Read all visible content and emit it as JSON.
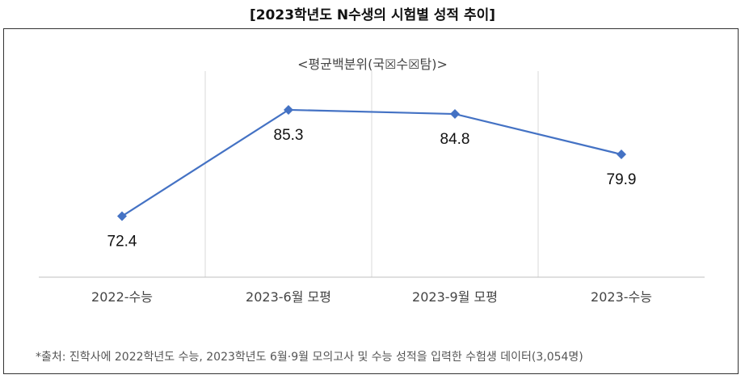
{
  "header": {
    "title": "[2023학년도 N수생의 시험별 성적 추이]"
  },
  "footer": {
    "source": "*출처: 진학사에 2022학년도 수능, 2023학년도 6월·9월 모의고사 및 수능 성적을 입력한 수험생 데이터(3,054명)"
  },
  "chart_data": {
    "type": "line",
    "title": "<평균백분위(국☒수☒탐)>",
    "categories": [
      "2022-수능",
      "2023-6월 모평",
      "2023-9월 모평",
      "2023-수능"
    ],
    "values": [
      72.4,
      85.3,
      84.8,
      79.9
    ],
    "data_labels": [
      "72.4",
      "85.3",
      "84.8",
      "79.9"
    ],
    "ylim": [
      65,
      90
    ],
    "grid": "vertical category separators",
    "legend": "none",
    "color": "#4472C4",
    "marker": "diamond"
  }
}
